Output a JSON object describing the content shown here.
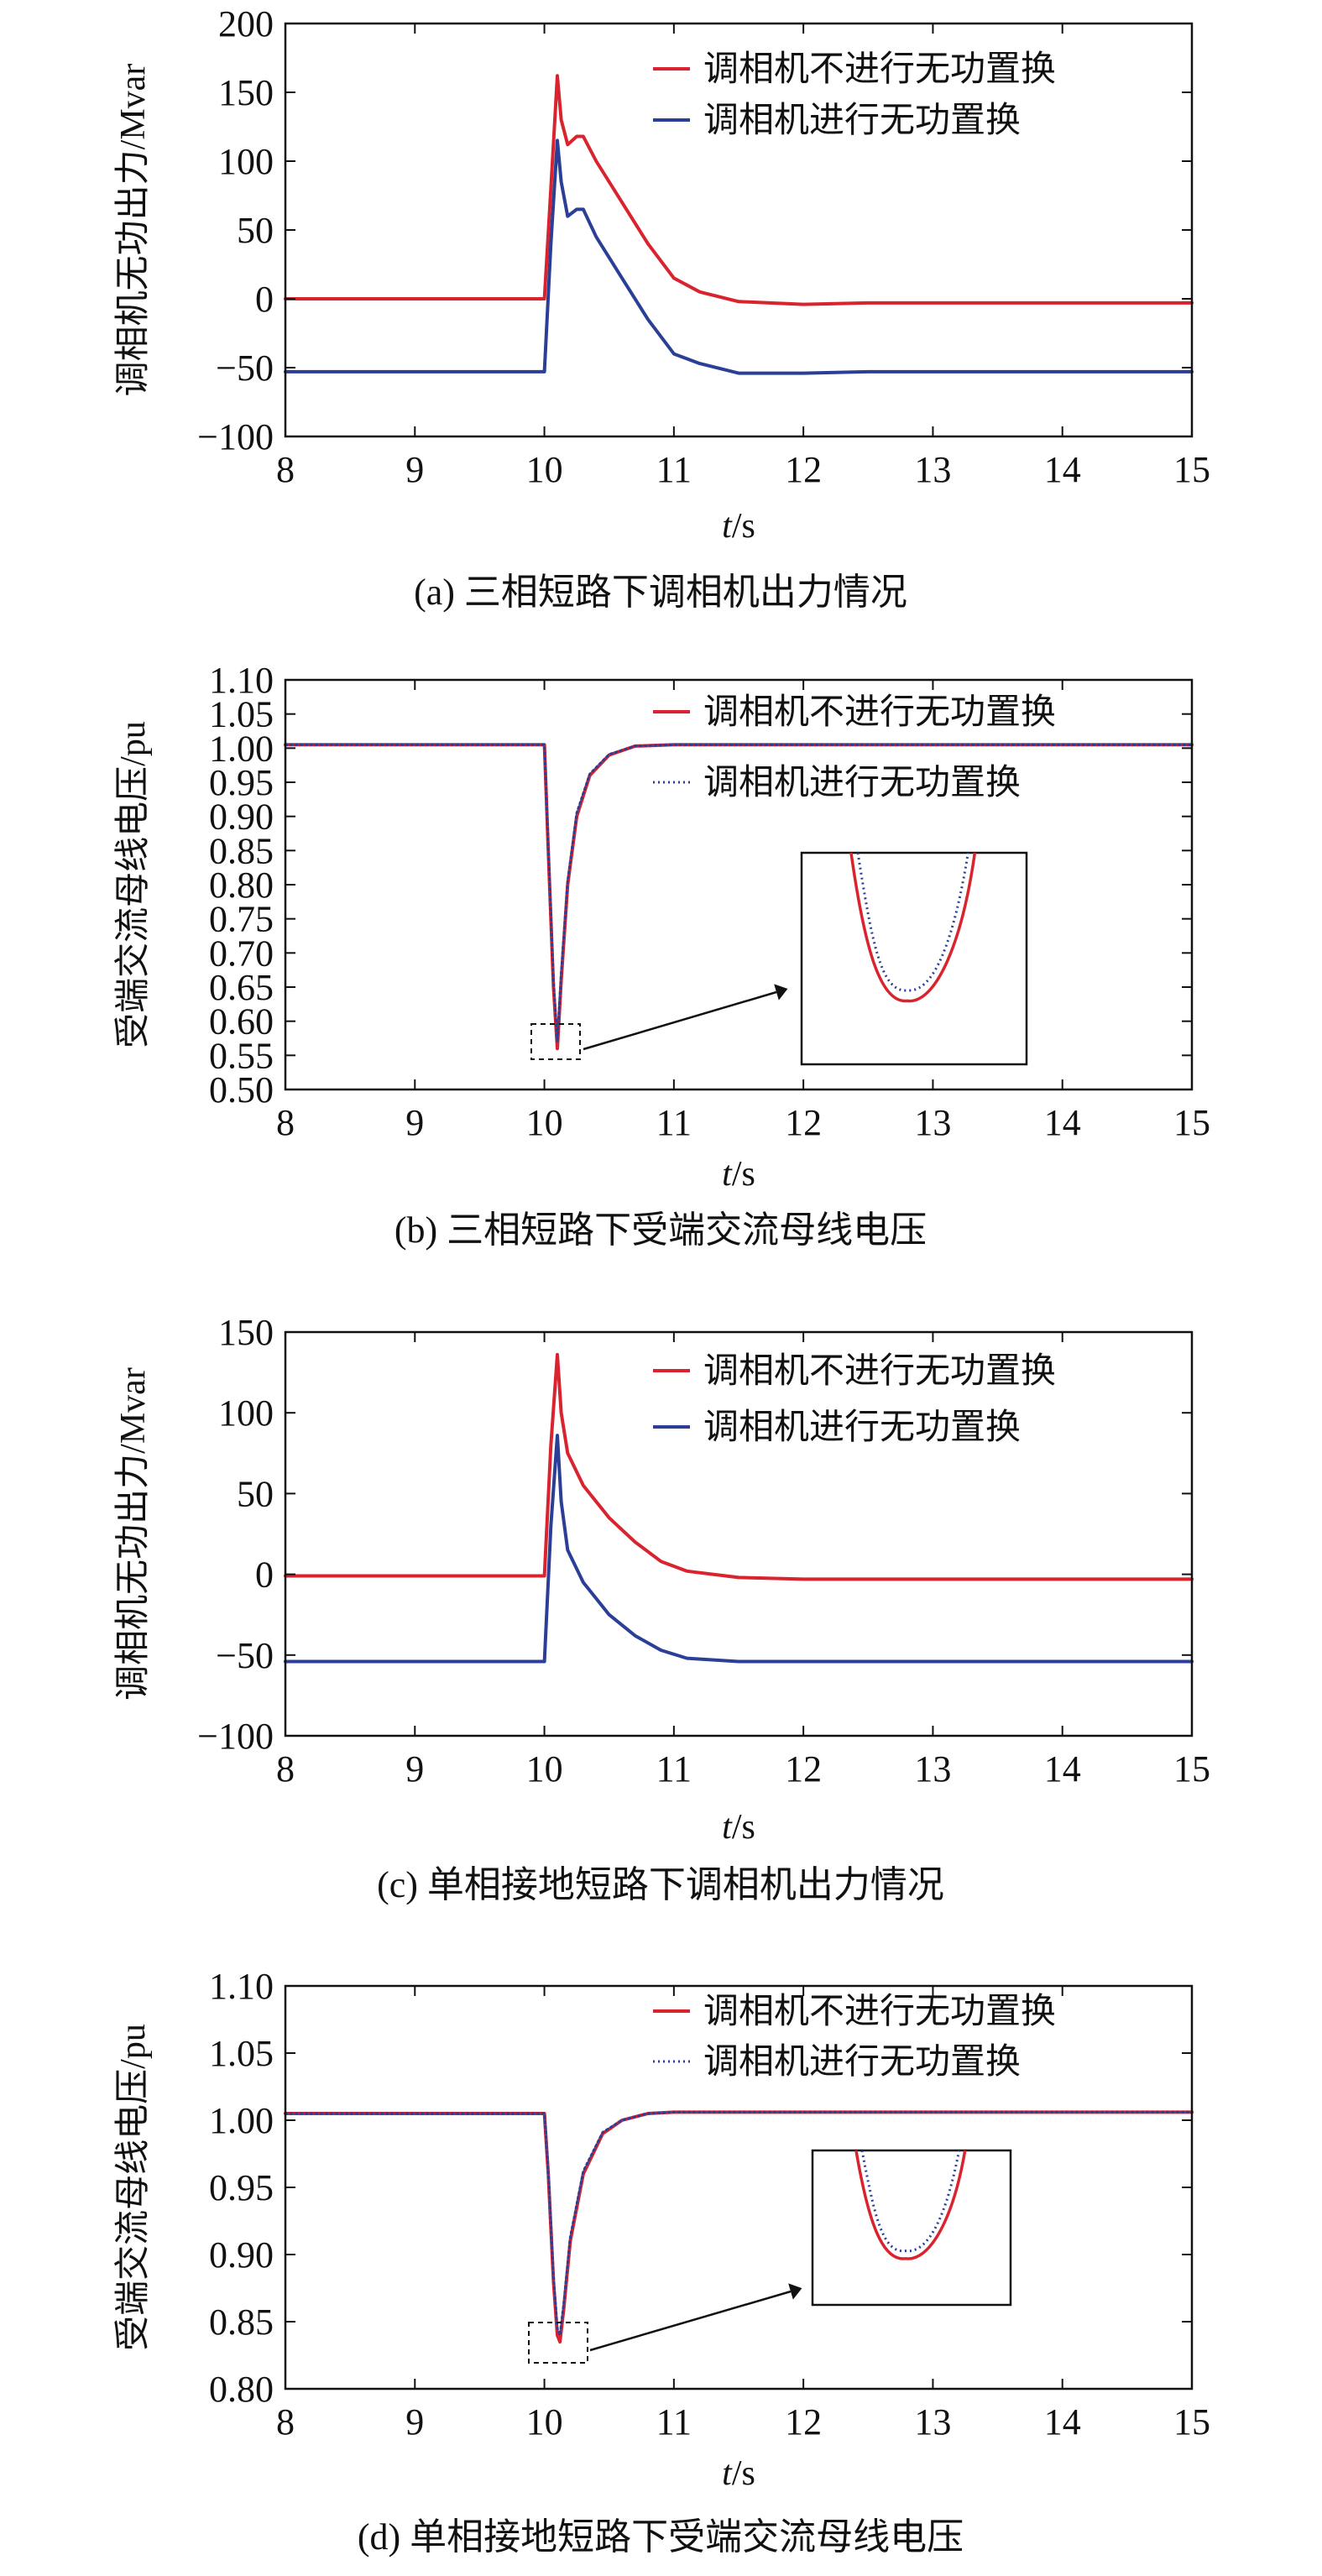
{
  "legend": {
    "no_swap": "调相机不进行无功置换",
    "swap": "调相机进行无功置换",
    "no_swap_color": "#d9232e",
    "swap_color": "#2b3f96"
  },
  "chart_data": [
    {
      "type": "line",
      "caption": "(a)  三相短路下调相机出力情况",
      "xlabel_var": "t",
      "xlabel_unit": "/s",
      "ylabel": "调相机无功出力/Mvar",
      "xlim": [
        8,
        15
      ],
      "ylim": [
        -100,
        200
      ],
      "xticks": [
        "8",
        "9",
        "10",
        "11",
        "12",
        "13",
        "14",
        "15"
      ],
      "yticks": [
        "200",
        "150",
        "100",
        "50",
        "0",
        "−50",
        "−100"
      ],
      "legend_position": "top-right",
      "series": [
        {
          "name": "调相机不进行无功置换",
          "style": "solid",
          "x": [
            8,
            9.9,
            10.0,
            10.05,
            10.1,
            10.13,
            10.18,
            10.25,
            10.3,
            10.4,
            10.6,
            10.8,
            11.0,
            11.2,
            11.5,
            12.0,
            12.5,
            13,
            15
          ],
          "y": [
            0,
            0,
            0,
            80,
            162,
            130,
            112,
            118,
            118,
            100,
            70,
            40,
            15,
            5,
            -2,
            -4,
            -3,
            -3,
            -3
          ]
        },
        {
          "name": "调相机进行无功置换",
          "style": "solid",
          "x": [
            8,
            9.9,
            10.0,
            10.05,
            10.1,
            10.13,
            10.18,
            10.25,
            10.3,
            10.4,
            10.6,
            10.8,
            11.0,
            11.2,
            11.5,
            12.0,
            12.5,
            13,
            15
          ],
          "y": [
            -53,
            -53,
            -53,
            40,
            115,
            85,
            60,
            65,
            65,
            45,
            15,
            -15,
            -40,
            -47,
            -54,
            -54,
            -53,
            -53,
            -53
          ]
        }
      ]
    },
    {
      "type": "line",
      "caption": "(b) 三相短路下受端交流母线电压",
      "xlabel_var": "t",
      "xlabel_unit": "/s",
      "ylabel": "受端交流母线电压/pu",
      "xlim": [
        8,
        15
      ],
      "ylim": [
        0.5,
        1.1
      ],
      "xticks": [
        "8",
        "9",
        "10",
        "11",
        "12",
        "13",
        "14",
        "15"
      ],
      "yticks": [
        "1.10",
        "1.05",
        "1.00",
        "0.95",
        "0.90",
        "0.85",
        "0.80",
        "0.75",
        "0.70",
        "0.65",
        "0.60",
        "0.55",
        "0.50"
      ],
      "legend_position": "top-right",
      "series": [
        {
          "name": "调相机不进行无功置换",
          "style": "solid",
          "x": [
            8,
            10.0,
            10.03,
            10.07,
            10.1,
            10.13,
            10.18,
            10.25,
            10.35,
            10.5,
            10.7,
            11.0,
            15
          ],
          "y": [
            1.005,
            1.005,
            0.85,
            0.65,
            0.56,
            0.66,
            0.8,
            0.9,
            0.96,
            0.99,
            1.003,
            1.005,
            1.005
          ]
        },
        {
          "name": "调相机进行无功置换",
          "style": "dotted",
          "x": [
            8,
            10.0,
            10.03,
            10.07,
            10.1,
            10.13,
            10.18,
            10.25,
            10.35,
            10.5,
            10.7,
            11.0,
            15
          ],
          "y": [
            1.005,
            1.005,
            0.855,
            0.66,
            0.57,
            0.67,
            0.805,
            0.905,
            0.962,
            0.991,
            1.003,
            1.005,
            1.005
          ]
        }
      ]
    },
    {
      "type": "line",
      "caption": "(c) 单相接地短路下调相机出力情况",
      "xlabel_var": "t",
      "xlabel_unit": "/s",
      "ylabel": "调相机无功出力/Mvar",
      "xlim": [
        8,
        15
      ],
      "ylim": [
        -100,
        150
      ],
      "xticks": [
        "8",
        "9",
        "10",
        "11",
        "12",
        "13",
        "14",
        "15"
      ],
      "yticks": [
        "150",
        "100",
        "50",
        "0",
        "−50",
        "−100"
      ],
      "legend_position": "top-right",
      "series": [
        {
          "name": "调相机不进行无功置换",
          "style": "solid",
          "x": [
            8,
            9.98,
            10.0,
            10.05,
            10.1,
            10.13,
            10.18,
            10.3,
            10.5,
            10.7,
            10.9,
            11.1,
            11.5,
            12,
            15
          ],
          "y": [
            -1,
            -1,
            -1,
            80,
            136,
            100,
            75,
            55,
            35,
            20,
            8,
            2,
            -2,
            -3,
            -3
          ]
        },
        {
          "name": "调相机进行无功置换",
          "style": "solid",
          "x": [
            8,
            9.98,
            10.0,
            10.05,
            10.1,
            10.13,
            10.18,
            10.3,
            10.5,
            10.7,
            10.9,
            11.1,
            11.5,
            12,
            15
          ],
          "y": [
            -54,
            -54,
            -54,
            30,
            86,
            45,
            15,
            -5,
            -25,
            -38,
            -47,
            -52,
            -54,
            -54,
            -54
          ]
        }
      ]
    },
    {
      "type": "line",
      "caption": "(d) 单相接地短路下受端交流母线电压",
      "xlabel_var": "t",
      "xlabel_unit": "/s",
      "ylabel": "受端交流母线电压/pu",
      "xlim": [
        8,
        15
      ],
      "ylim": [
        0.8,
        1.1
      ],
      "xticks": [
        "8",
        "9",
        "10",
        "11",
        "12",
        "13",
        "14",
        "15"
      ],
      "yticks": [
        "1.10",
        "1.05",
        "1.00",
        "0.95",
        "0.90",
        "0.85",
        "0.80"
      ],
      "legend_position": "top-right",
      "series": [
        {
          "name": "调相机不进行无功置换",
          "style": "solid",
          "x": [
            8,
            10.0,
            10.03,
            10.07,
            10.1,
            10.12,
            10.15,
            10.2,
            10.3,
            10.45,
            10.6,
            10.8,
            11.0,
            15
          ],
          "y": [
            1.005,
            1.005,
            0.96,
            0.88,
            0.84,
            0.835,
            0.86,
            0.91,
            0.96,
            0.99,
            1.0,
            1.005,
            1.006,
            1.006
          ]
        },
        {
          "name": "调相机进行无功置换",
          "style": "dotted",
          "x": [
            8,
            10.0,
            10.03,
            10.07,
            10.1,
            10.12,
            10.15,
            10.2,
            10.3,
            10.45,
            10.6,
            10.8,
            11.0,
            15
          ],
          "y": [
            1.005,
            1.005,
            0.962,
            0.884,
            0.845,
            0.84,
            0.864,
            0.913,
            0.962,
            0.991,
            1.0,
            1.005,
            1.006,
            1.006
          ]
        }
      ]
    }
  ]
}
